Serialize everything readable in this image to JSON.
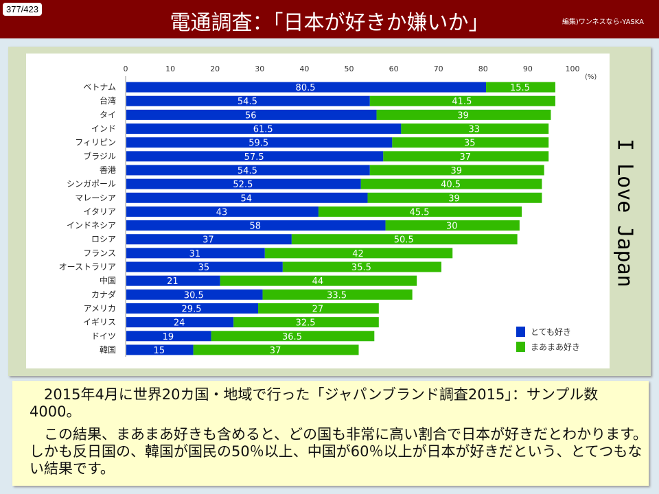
{
  "header": {
    "page": "377/423",
    "title": "電通調査：「日本が好きか嫌いか」",
    "editor": "編集)ワンネスなら-YASKA"
  },
  "side_text": "I Love Japan",
  "note": {
    "p1": "　2015年4月に世界20カ国・地域で行った「ジャパンブランド調査2015」：サンプル数4000。",
    "p2": "　この結果、まあまあ好きも含めると、どの国も非常に高い割合で日本が好きだとわかります。しかも反日国の、韓国が国民の50％以上、中国が60％以上が日本が好きだという、とてつもない結果です。"
  },
  "chart_data": {
    "type": "bar",
    "orientation": "horizontal",
    "stacked": true,
    "xlim": [
      0,
      100
    ],
    "xticks": [
      "0",
      "10",
      "20",
      "30",
      "40",
      "50",
      "60",
      "70",
      "80",
      "90",
      "100"
    ],
    "unit": "(%)",
    "categories": [
      "ベトナム",
      "台湾",
      "タイ",
      "インド",
      "フィリピン",
      "ブラジル",
      "香港",
      "シンガポール",
      "マレーシア",
      "イタリア",
      "インドネシア",
      "ロシア",
      "フランス",
      "オーストラリア",
      "中国",
      "カナダ",
      "アメリカ",
      "イギリス",
      "ドイツ",
      "韓国"
    ],
    "series": [
      {
        "name": "とても好き",
        "color": "#0033cc",
        "values": [
          80.5,
          54.5,
          56,
          61.5,
          59.5,
          57.5,
          54.5,
          52.5,
          54,
          43,
          58,
          37,
          31,
          35,
          21,
          30.5,
          29.5,
          24,
          19,
          15
        ]
      },
      {
        "name": "まあまあ好き",
        "color": "#33bb00",
        "values": [
          15.5,
          41.5,
          39,
          33,
          35,
          37,
          39,
          40.5,
          39,
          45.5,
          30,
          50.5,
          42,
          35.5,
          44,
          33.5,
          27,
          32.5,
          36.5,
          37
        ]
      }
    ],
    "legend": "bottom-right"
  }
}
